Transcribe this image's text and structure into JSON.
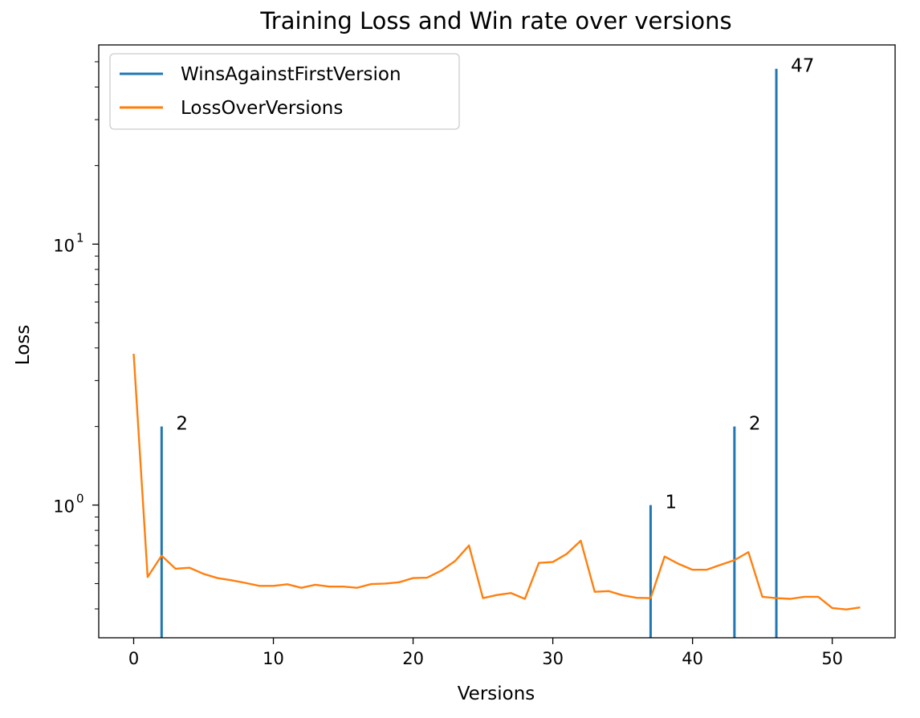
{
  "chart_data": {
    "type": "line",
    "title": "Training Loss and Win rate over versions",
    "xlabel": "Versions",
    "ylabel": "Loss",
    "yscale": "log",
    "xlim": [
      -2.5,
      54.5
    ],
    "ylim": [
      0.31,
      58
    ],
    "xticks": [
      0,
      10,
      20,
      30,
      40,
      50
    ],
    "xtick_labels": [
      "0",
      "10",
      "20",
      "30",
      "40",
      "50"
    ],
    "ytick_labels": [
      {
        "value": 1,
        "base": "10",
        "exp": "0"
      },
      {
        "value": 10,
        "base": "10",
        "exp": "1"
      }
    ],
    "grid": false,
    "legend_position": "upper-left",
    "series": [
      {
        "name": "WinsAgainstFirstVersion",
        "kind": "vlines",
        "color": "#1f77b4",
        "points": [
          {
            "x": 2,
            "y": 2,
            "label": "2"
          },
          {
            "x": 37,
            "y": 1,
            "label": "1"
          },
          {
            "x": 43,
            "y": 2,
            "label": "2"
          },
          {
            "x": 46,
            "y": 47,
            "label": "47"
          }
        ]
      },
      {
        "name": "LossOverVersions",
        "kind": "line",
        "color": "#ff7f0e",
        "x": [
          0,
          1,
          2,
          3,
          4,
          5,
          6,
          7,
          8,
          9,
          10,
          11,
          12,
          13,
          14,
          15,
          16,
          17,
          18,
          19,
          20,
          21,
          22,
          23,
          24,
          25,
          26,
          27,
          28,
          29,
          30,
          31,
          32,
          33,
          34,
          35,
          36,
          37,
          38,
          39,
          40,
          41,
          42,
          43,
          44,
          45,
          46,
          47,
          48,
          49,
          50,
          51,
          52
        ],
        "y": [
          3.8,
          0.53,
          0.64,
          0.57,
          0.575,
          0.545,
          0.525,
          0.515,
          0.503,
          0.49,
          0.49,
          0.497,
          0.482,
          0.495,
          0.487,
          0.487,
          0.482,
          0.498,
          0.5,
          0.506,
          0.525,
          0.527,
          0.56,
          0.61,
          0.7,
          0.44,
          0.452,
          0.46,
          0.437,
          0.6,
          0.605,
          0.65,
          0.73,
          0.465,
          0.468,
          0.451,
          0.441,
          0.44,
          0.635,
          0.595,
          0.565,
          0.565,
          0.59,
          0.615,
          0.66,
          0.445,
          0.44,
          0.437,
          0.445,
          0.445,
          0.403,
          0.398,
          0.405
        ]
      }
    ]
  }
}
